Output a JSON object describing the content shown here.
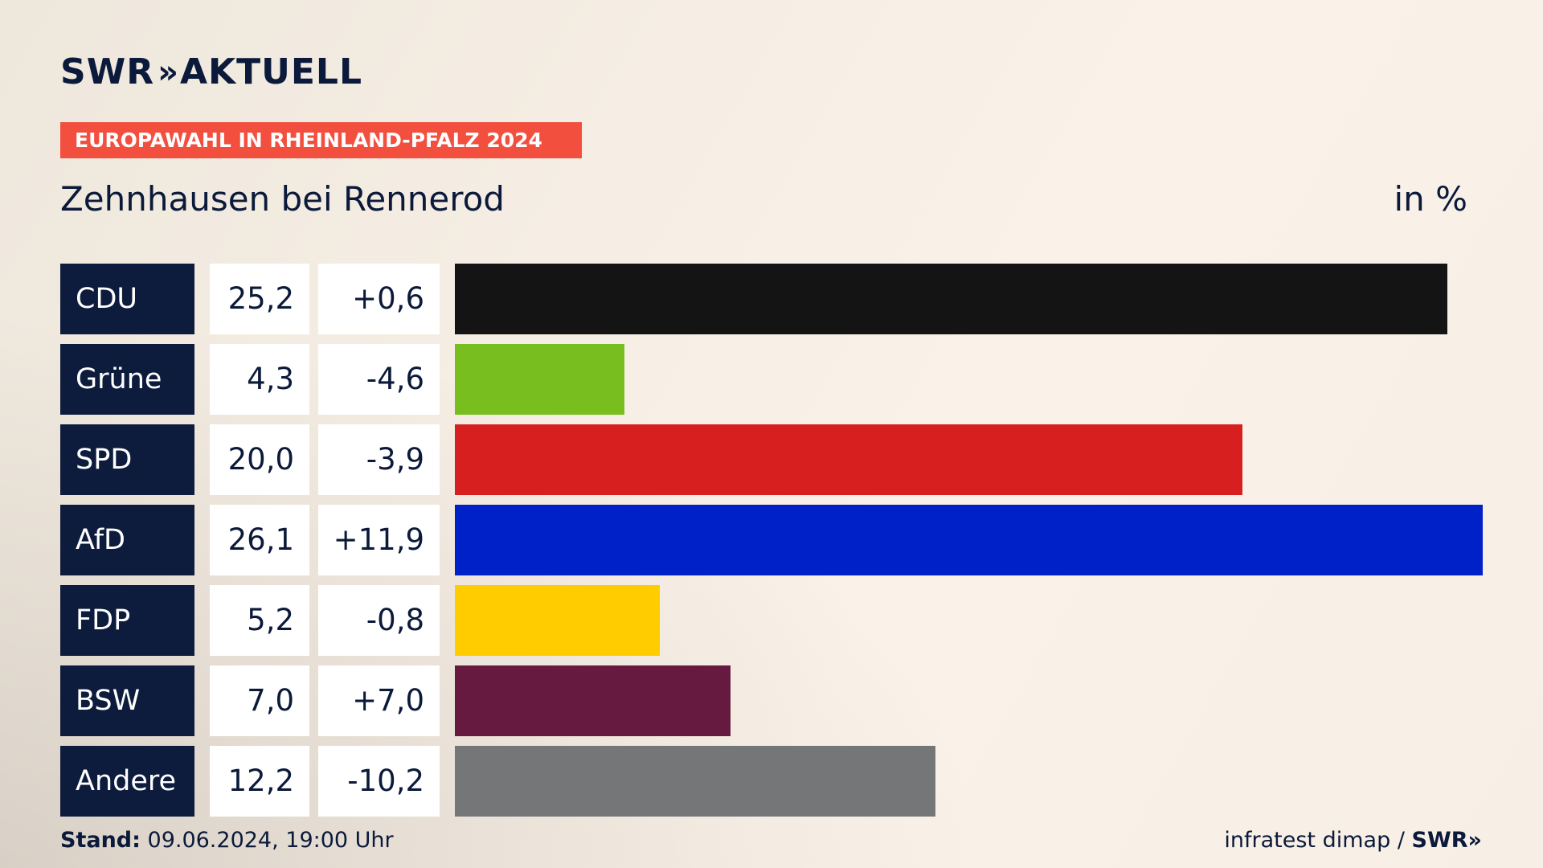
{
  "header": {
    "logo_text": "SWR",
    "logo_chevrons": "»",
    "logo_suffix": "AKTUELL",
    "badge": "EUROPAWAHL IN RHEINLAND-PFALZ 2024",
    "place": "Zehnhausen bei Rennerod",
    "unit": "in %"
  },
  "colors": {
    "background": "#f6eee4",
    "badge": "#f24f3f",
    "label_cell": "#0d1c3c",
    "text": "#0b1a3a"
  },
  "chart_data": {
    "type": "bar",
    "orientation": "horizontal",
    "categories": [
      "CDU",
      "Grüne",
      "SPD",
      "AfD",
      "FDP",
      "BSW",
      "Andere"
    ],
    "values": [
      25.2,
      4.3,
      20.0,
      26.1,
      5.2,
      7.0,
      12.2
    ],
    "values_display": [
      "25,2",
      "4,3",
      "20,0",
      "26,1",
      "5,2",
      "7,0",
      "12,2"
    ],
    "diff": [
      0.6,
      -4.6,
      -3.9,
      11.9,
      -0.8,
      7.0,
      -10.2
    ],
    "diff_display": [
      "+0,6",
      "-4,6",
      "-3,9",
      "+11,9",
      "-0,8",
      "+7,0",
      "-10,2"
    ],
    "bar_colors": [
      "#141414",
      "#78be1e",
      "#d71f1f",
      "#0021c8",
      "#ffcc00",
      "#661a3f",
      "#757678"
    ],
    "xlim": [
      0,
      26.1
    ],
    "grid": false,
    "legend": "none"
  },
  "footer": {
    "stand_label": "Stand:",
    "stand_value": "09.06.2024, 19:00 Uhr",
    "source": "infratest dimap /",
    "source_logo": "SWR",
    "source_chevrons": "»"
  }
}
